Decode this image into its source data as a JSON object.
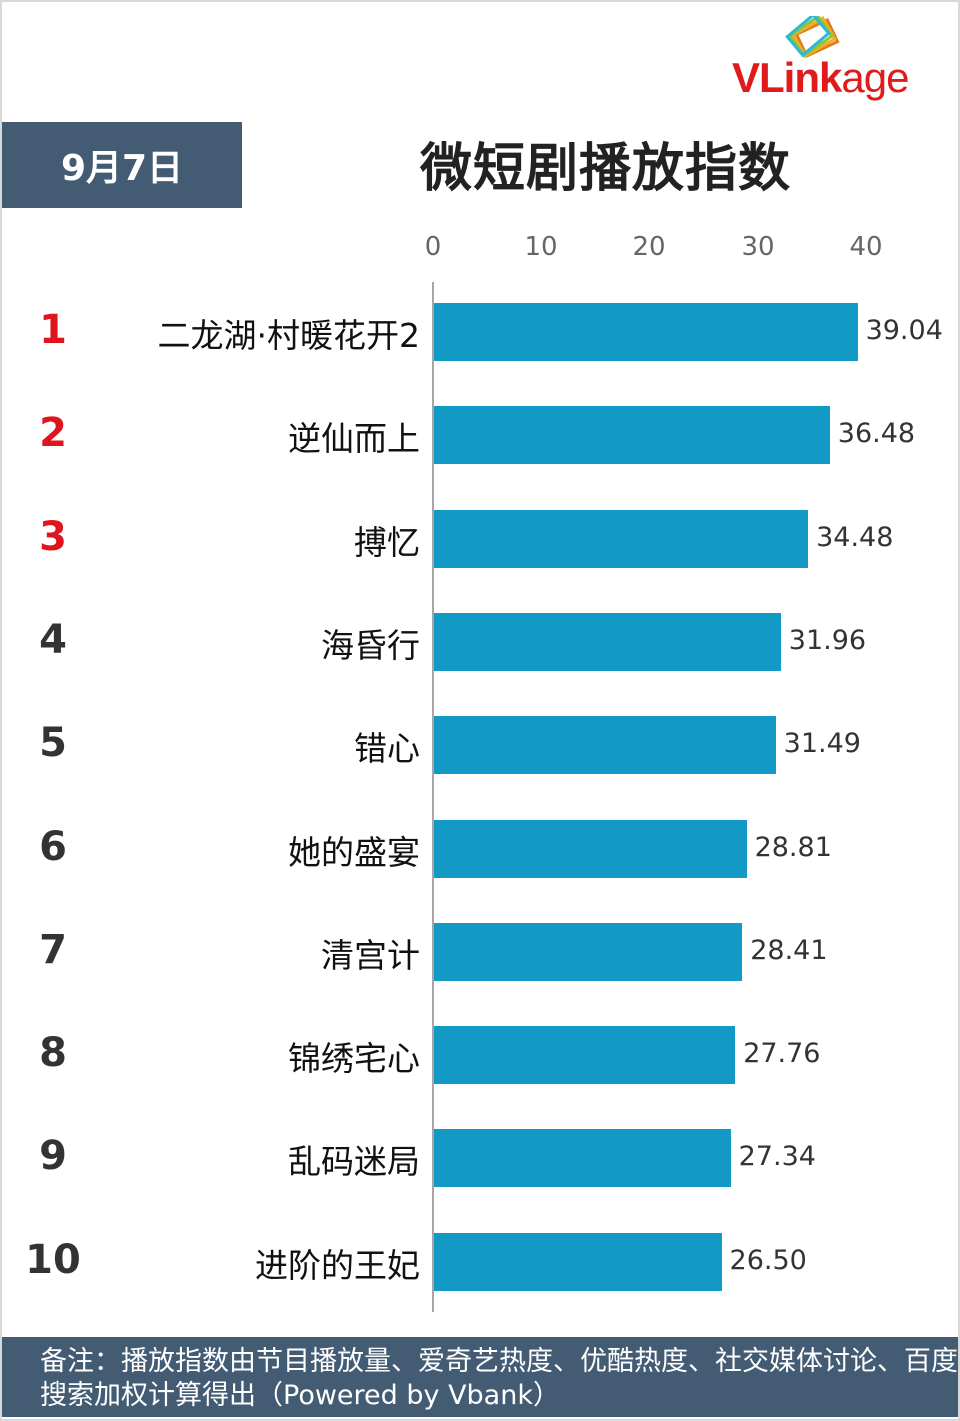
{
  "brand": {
    "logo_bold": "VLink",
    "logo_light": "age"
  },
  "header": {
    "date": "9月7日",
    "title": "微短剧播放指数"
  },
  "axis": {
    "ticks": [
      "0",
      "10",
      "20",
      "30",
      "40"
    ]
  },
  "colors": {
    "bar": "#1399c6",
    "header_bg": "#435c74",
    "rank_top": "#e0141e",
    "rank_other": "#333333",
    "logo": "#e01b1b"
  },
  "rows": [
    {
      "rank": "1",
      "name": "二龙湖·村暖花开2",
      "value": "39.04"
    },
    {
      "rank": "2",
      "name": "逆仙而上",
      "value": "36.48"
    },
    {
      "rank": "3",
      "name": "搏忆",
      "value": "34.48"
    },
    {
      "rank": "4",
      "name": "海昏行",
      "value": "31.96"
    },
    {
      "rank": "5",
      "name": "错心",
      "value": "31.49"
    },
    {
      "rank": "6",
      "name": "她的盛宴",
      "value": "28.81"
    },
    {
      "rank": "7",
      "name": "清宫计",
      "value": "28.41"
    },
    {
      "rank": "8",
      "name": "锦绣宅心",
      "value": "27.76"
    },
    {
      "rank": "9",
      "name": "乱码迷局",
      "value": "27.34"
    },
    {
      "rank": "10",
      "name": "进阶的王妃",
      "value": "26.50"
    }
  ],
  "footer": {
    "note": "备注：播放指数由节目播放量、爱奇艺热度、优酷热度、社交媒体讨论、百度搜索加权计算得出（Powered by Vbank）"
  },
  "chart_data": {
    "type": "bar",
    "orientation": "horizontal",
    "title": "微短剧播放指数",
    "subtitle": "9月7日",
    "categories": [
      "二龙湖·村暖花开2",
      "逆仙而上",
      "搏忆",
      "海昏行",
      "错心",
      "她的盛宴",
      "清宫计",
      "锦绣宅心",
      "乱码迷局",
      "进阶的王妃"
    ],
    "values": [
      39.04,
      36.48,
      34.48,
      31.96,
      31.49,
      28.81,
      28.41,
      27.76,
      27.34,
      26.5
    ],
    "xlabel": "",
    "ylabel": "",
    "xlim": [
      0,
      40
    ],
    "x_ticks": [
      0,
      10,
      20,
      30,
      40
    ],
    "grid": false,
    "legend": "none",
    "note": "备注：播放指数由节目播放量、爱奇艺热度、优酷热度、社交媒体讨论、百度搜索加权计算得出（Powered by Vbank）"
  }
}
